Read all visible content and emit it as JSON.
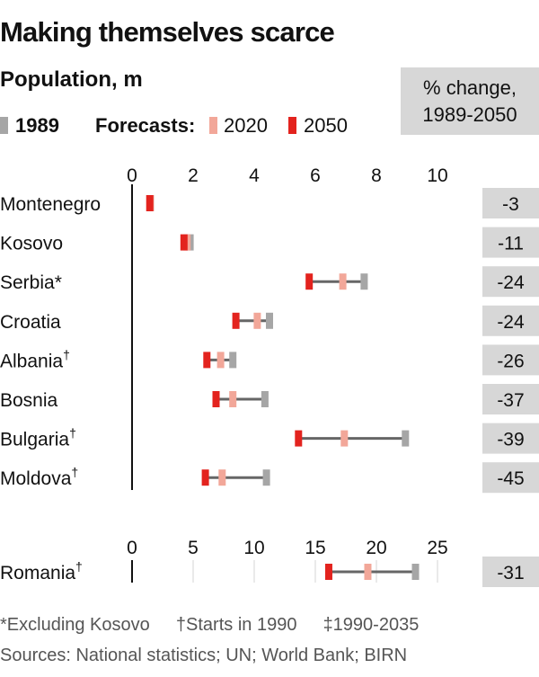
{
  "title": "Making themselves scarce",
  "subtitle": "Population, m",
  "pct_header": [
    "% change,",
    "1989-2050"
  ],
  "legend": {
    "items": [
      {
        "label": "1989",
        "color": "#a6a6a6",
        "bold": true
      },
      {
        "label": "Forecasts:",
        "color": null,
        "bold": true
      },
      {
        "label": "2020",
        "color": "#f2a799",
        "bold": false
      },
      {
        "label": "2050",
        "color": "#e3231e",
        "bold": false
      }
    ]
  },
  "footnotes": {
    "line1": [
      "*Excluding Kosovo",
      "†Starts in 1990",
      "‡1990-2035"
    ],
    "line2": "Sources: National statistics; UN; World Bank; BIRN"
  },
  "colors": {
    "y1989": "#a6a6a6",
    "y2020": "#f2a799",
    "y2050": "#e3231e",
    "connector": "#666666",
    "badge": "#d7d7d7",
    "gridline": "#e2e2e2"
  },
  "chart_data": [
    {
      "type": "dumbbell",
      "xlim": [
        0,
        10
      ],
      "ticks": [
        0,
        2,
        4,
        6,
        8,
        10
      ],
      "rows": [
        {
          "country": "Montenegro",
          "mark": "",
          "v1989": 0.6,
          "v2020": 0.6,
          "v2050": 0.58,
          "pct": "-3"
        },
        {
          "country": "Kosovo",
          "mark": "",
          "v1989": 1.9,
          "v2020": 1.8,
          "v2050": 1.7,
          "pct": "-11"
        },
        {
          "country": "Serbia",
          "mark": "*",
          "v1989": 7.6,
          "v2020": 6.9,
          "v2050": 5.8,
          "pct": "-24"
        },
        {
          "country": "Croatia",
          "mark": "",
          "v1989": 4.5,
          "v2020": 4.1,
          "v2050": 3.4,
          "pct": "-24"
        },
        {
          "country": "Albania",
          "mark": "†",
          "v1989": 3.3,
          "v2020": 2.9,
          "v2050": 2.45,
          "pct": "-26"
        },
        {
          "country": "Bosnia",
          "mark": "",
          "v1989": 4.35,
          "v2020": 3.3,
          "v2050": 2.75,
          "pct": "-37"
        },
        {
          "country": "Bulgaria",
          "mark": "†",
          "v1989": 8.95,
          "v2020": 6.95,
          "v2050": 5.45,
          "pct": "-39"
        },
        {
          "country": "Moldova",
          "mark": "†",
          "v1989": 4.4,
          "v2020": 2.95,
          "v2050": 2.4,
          "pct": "-45"
        }
      ]
    },
    {
      "type": "dumbbell",
      "xlim": [
        0,
        25
      ],
      "ticks": [
        0,
        5,
        10,
        15,
        20,
        25
      ],
      "rows": [
        {
          "country": "Romania",
          "mark": "†",
          "v1989": 23.2,
          "v2020": 19.3,
          "v2050": 16.1,
          "pct": "-31"
        }
      ]
    }
  ]
}
